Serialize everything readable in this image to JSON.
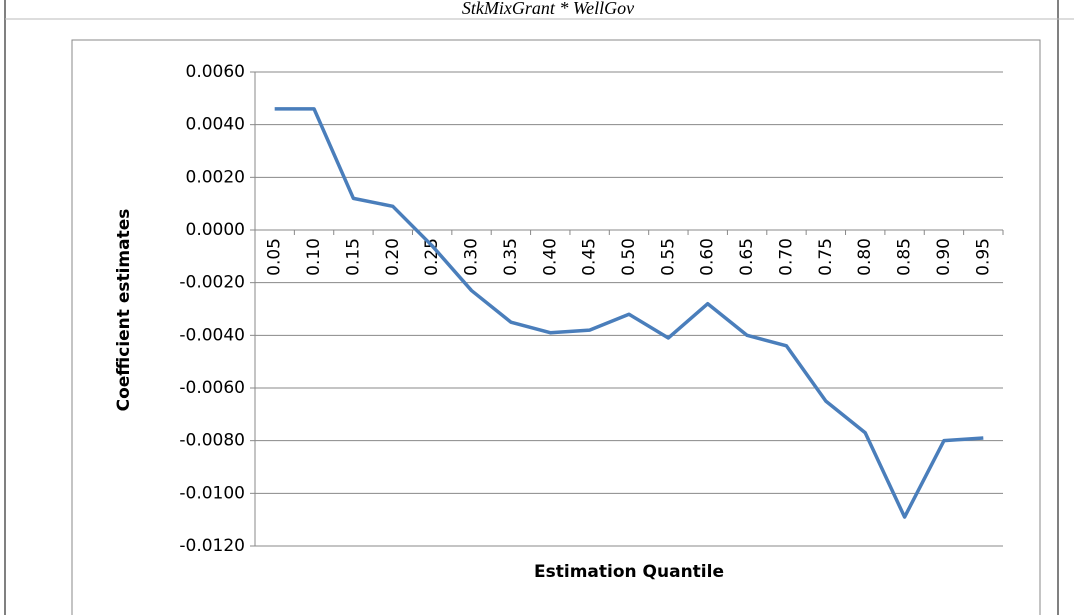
{
  "chart_data": {
    "type": "line",
    "title": "StkMixGrant * WellGov",
    "x_label": "Estimation Quantile",
    "y_label": "Coefficient estimates",
    "categories": [
      "0.05",
      "0.10",
      "0.15",
      "0.20",
      "0.25",
      "0.30",
      "0.35",
      "0.40",
      "0.45",
      "0.50",
      "0.55",
      "0.60",
      "0.65",
      "0.70",
      "0.75",
      "0.80",
      "0.85",
      "0.90",
      "0.95"
    ],
    "series": [
      {
        "name": "StkMixGrant * WellGov",
        "color": "#4a7ebb",
        "values": [
          0.0046,
          0.0046,
          0.0012,
          0.0009,
          -0.0006,
          -0.0023,
          -0.0035,
          -0.0039,
          -0.0038,
          -0.0032,
          -0.0041,
          -0.0028,
          -0.004,
          -0.0044,
          -0.0065,
          -0.0077,
          -0.0109,
          -0.008,
          -0.0079
        ]
      }
    ],
    "ylim": [
      -0.012,
      0.006
    ],
    "yticks": [
      {
        "value": -0.012,
        "label": "-0.0120"
      },
      {
        "value": -0.01,
        "label": "-0.0100"
      },
      {
        "value": -0.008,
        "label": "-0.0080"
      },
      {
        "value": -0.006,
        "label": "-0.0060"
      },
      {
        "value": -0.004,
        "label": "-0.0040"
      },
      {
        "value": -0.002,
        "label": "-0.0020"
      },
      {
        "value": 0,
        "label": "0.0000"
      },
      {
        "value": 0.002,
        "label": "0.0020"
      },
      {
        "value": 0.004,
        "label": "0.0040"
      },
      {
        "value": 0.006,
        "label": "0.0060"
      }
    ],
    "grid": true
  }
}
